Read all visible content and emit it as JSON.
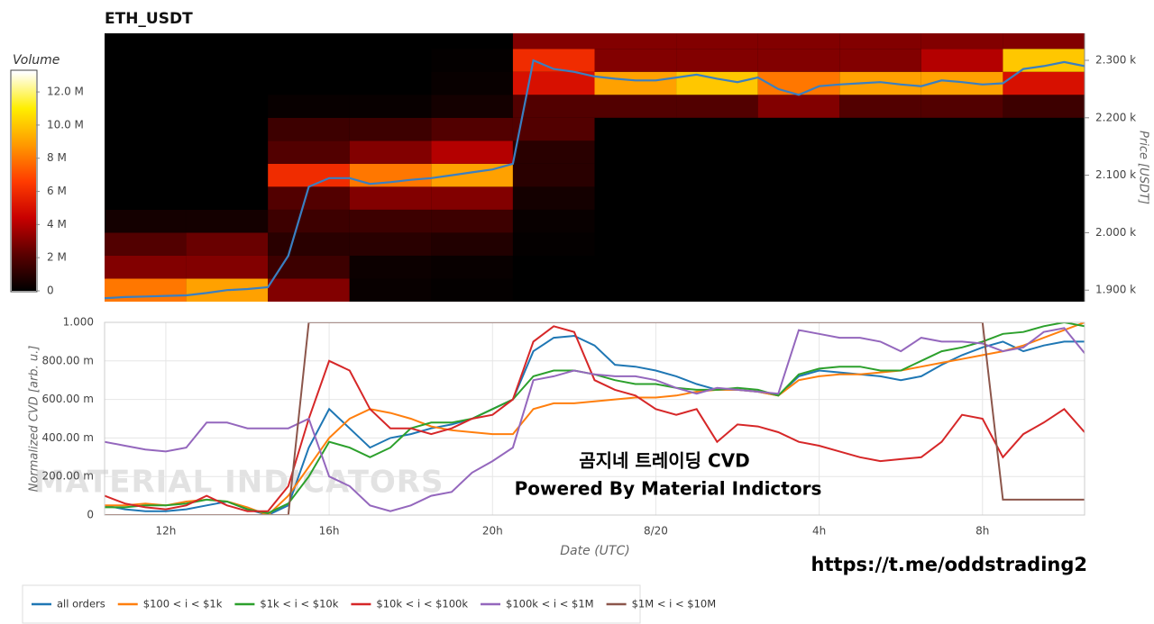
{
  "chart_data": [
    {
      "type": "heatmap",
      "title": "ETH_USDT",
      "x_edges": [
        10.5,
        12.5,
        14.5,
        16.5,
        18.5,
        20.5,
        22.5,
        24.5,
        26.5,
        28.5,
        30.5,
        32.5,
        34.5
      ],
      "y_edges": [
        1880,
        1920,
        1960,
        2000,
        2040,
        2080,
        2120,
        2160,
        2200,
        2240,
        2280,
        2320,
        2360
      ],
      "z": [
        [
          8,
          9,
          3,
          0.2,
          0.1,
          0,
          0,
          0,
          0,
          0,
          0,
          0
        ],
        [
          3,
          3,
          1.5,
          0.3,
          0.2,
          0,
          0,
          0,
          0,
          0,
          0,
          0
        ],
        [
          2,
          2.5,
          1,
          1,
          0.8,
          0.1,
          0,
          0,
          0,
          0,
          0,
          0
        ],
        [
          0.5,
          0.5,
          1.5,
          1.5,
          1.5,
          0.2,
          0,
          0,
          0,
          0,
          0,
          0
        ],
        [
          0,
          0,
          2,
          3,
          3,
          0.5,
          0,
          0,
          0,
          0,
          0,
          0
        ],
        [
          0,
          0,
          6,
          8,
          9,
          1,
          0,
          0,
          0,
          0,
          0,
          0
        ],
        [
          0,
          0,
          2,
          3,
          4,
          1,
          0,
          0,
          0,
          0,
          0,
          0
        ],
        [
          0,
          0,
          1.5,
          1.5,
          2,
          2,
          0,
          0,
          0,
          0,
          0,
          0
        ],
        [
          0,
          0,
          0.2,
          0.2,
          0.5,
          2,
          2,
          2,
          3,
          2,
          2,
          1.5
        ],
        [
          0,
          0,
          0,
          0,
          0.2,
          5,
          9,
          10,
          8,
          9,
          9,
          5
        ],
        [
          0,
          0,
          0,
          0,
          0.1,
          6,
          3,
          3,
          3,
          3,
          4,
          10
        ],
        [
          0,
          0,
          0,
          0,
          0,
          3,
          3,
          3,
          3,
          3,
          3,
          3
        ]
      ],
      "colorscale": [
        "#000000",
        "#5a0000",
        "#c80000",
        "#ff3c00",
        "#ff9900",
        "#ffee00",
        "#ffffff"
      ],
      "zlim": [
        0,
        13.2
      ],
      "colorbar_title": "Volume",
      "zticks": [
        0,
        {
          "value": 2,
          "label": "2 M"
        },
        {
          "value": 4,
          "label": "4 M"
        },
        {
          "value": 6,
          "label": "6 M"
        },
        {
          "value": 8,
          "label": "8 M"
        },
        {
          "value": 10,
          "label": "10.0 M"
        },
        {
          "value": 12,
          "label": "12.0 M"
        }
      ],
      "ylabel": "Price [USDT]",
      "ylim": [
        1880,
        2347
      ],
      "yticks": [
        {
          "value": 1900,
          "label": "1.900 k"
        },
        {
          "value": 2000,
          "label": "2.000 k"
        },
        {
          "value": 2100,
          "label": "2.100 k"
        },
        {
          "value": 2200,
          "label": "2.200 k"
        },
        {
          "value": 2300,
          "label": "2.300 k"
        }
      ],
      "xlim": [
        10.5,
        34.5
      ],
      "x": [
        10.5,
        11,
        11.5,
        12,
        12.5,
        13,
        13.5,
        14,
        14.5,
        15,
        15.5,
        16,
        16.5,
        17,
        17.5,
        18,
        18.5,
        19,
        19.5,
        20,
        20.5,
        21,
        21.5,
        22,
        22.5,
        23,
        23.5,
        24,
        24.5,
        25,
        25.5,
        26,
        26.5,
        27,
        27.5,
        28,
        28.5,
        29,
        29.5,
        30,
        30.5,
        31,
        31.5,
        32,
        32.5,
        33,
        33.5,
        34,
        34.5
      ],
      "line": {
        "color": "#3a7fc1",
        "values": [
          1886,
          1888,
          1889,
          1890,
          1891,
          1895,
          1900,
          1902,
          1905,
          1960,
          2080,
          2095,
          2095,
          2085,
          2088,
          2092,
          2095,
          2100,
          2105,
          2110,
          2120,
          2300,
          2285,
          2280,
          2272,
          2268,
          2265,
          2265,
          2270,
          2275,
          2268,
          2262,
          2270,
          2250,
          2240,
          2255,
          2258,
          2260,
          2262,
          2258,
          2255,
          2265,
          2262,
          2258,
          2260,
          2285,
          2290,
          2297,
          2290
        ]
      }
    },
    {
      "type": "line",
      "xlabel": "Date (UTC)",
      "ylabel": "Normalized CVD [arb. u.]",
      "xlim": [
        10.5,
        34.5
      ],
      "xticks": [
        {
          "value": 12,
          "label": "12h"
        },
        {
          "value": 16,
          "label": "16h"
        },
        {
          "value": 20,
          "label": "20h"
        },
        {
          "value": 24,
          "label": "8/20"
        },
        {
          "value": 28,
          "label": "4h"
        },
        {
          "value": 32,
          "label": "8h"
        }
      ],
      "ylim": [
        0,
        1
      ],
      "yticks": [
        0,
        {
          "value": 0.2,
          "label": "200.00 m"
        },
        {
          "value": 0.4,
          "label": "400.00 m"
        },
        {
          "value": 0.6,
          "label": "600.00 m"
        },
        {
          "value": 0.8,
          "label": "800.00 m"
        },
        {
          "value": 1,
          "label": "1.000"
        }
      ],
      "grid": true,
      "x": [
        10.5,
        11,
        11.5,
        12,
        12.5,
        13,
        13.5,
        14,
        14.5,
        15,
        15.5,
        16,
        16.5,
        17,
        17.5,
        18,
        18.5,
        19,
        19.5,
        20,
        20.5,
        21,
        21.5,
        22,
        22.5,
        23,
        23.5,
        24,
        24.5,
        25,
        25.5,
        26,
        26.5,
        27,
        27.5,
        28,
        28.5,
        29,
        29.5,
        30,
        30.5,
        31,
        31.5,
        32,
        32.5,
        33,
        33.5,
        34,
        34.5
      ],
      "series": [
        {
          "name": "all orders",
          "color": "#1f77b4",
          "values": [
            0.05,
            0.03,
            0.02,
            0.02,
            0.03,
            0.05,
            0.07,
            0.03,
            0,
            0.05,
            0.35,
            0.55,
            0.45,
            0.35,
            0.4,
            0.42,
            0.45,
            0.47,
            0.5,
            0.55,
            0.6,
            0.85,
            0.92,
            0.93,
            0.88,
            0.78,
            0.77,
            0.75,
            0.72,
            0.68,
            0.65,
            0.65,
            0.64,
            0.62,
            0.72,
            0.75,
            0.74,
            0.73,
            0.72,
            0.7,
            0.72,
            0.78,
            0.83,
            0.87,
            0.9,
            0.85,
            0.88,
            0.9,
            0.9
          ]
        },
        {
          "name": "$100 < i < $1k",
          "color": "#ff7f0e",
          "values": [
            0.05,
            0.05,
            0.06,
            0.05,
            0.07,
            0.08,
            0.07,
            0.04,
            0,
            0.1,
            0.25,
            0.4,
            0.5,
            0.55,
            0.53,
            0.5,
            0.46,
            0.44,
            0.43,
            0.42,
            0.42,
            0.55,
            0.58,
            0.58,
            0.59,
            0.6,
            0.61,
            0.61,
            0.62,
            0.64,
            0.65,
            0.65,
            0.64,
            0.62,
            0.7,
            0.72,
            0.73,
            0.73,
            0.74,
            0.75,
            0.77,
            0.79,
            0.81,
            0.83,
            0.85,
            0.88,
            0.92,
            0.96,
            1
          ]
        },
        {
          "name": "$1k < i < $10k",
          "color": "#2ca02c",
          "values": [
            0.04,
            0.04,
            0.05,
            0.05,
            0.06,
            0.08,
            0.07,
            0.03,
            0.01,
            0.06,
            0.2,
            0.38,
            0.35,
            0.3,
            0.35,
            0.45,
            0.48,
            0.48,
            0.5,
            0.55,
            0.6,
            0.72,
            0.75,
            0.75,
            0.73,
            0.7,
            0.68,
            0.68,
            0.66,
            0.65,
            0.65,
            0.66,
            0.65,
            0.62,
            0.73,
            0.76,
            0.77,
            0.77,
            0.75,
            0.75,
            0.8,
            0.85,
            0.87,
            0.9,
            0.94,
            0.95,
            0.98,
            1,
            0.98
          ]
        },
        {
          "name": "$10k < i < $100k",
          "color": "#d62728",
          "values": [
            0.1,
            0.06,
            0.04,
            0.03,
            0.05,
            0.1,
            0.05,
            0.02,
            0.02,
            0.15,
            0.5,
            0.8,
            0.75,
            0.55,
            0.45,
            0.45,
            0.42,
            0.45,
            0.5,
            0.52,
            0.6,
            0.9,
            0.98,
            0.95,
            0.7,
            0.65,
            0.62,
            0.55,
            0.52,
            0.55,
            0.38,
            0.47,
            0.46,
            0.43,
            0.38,
            0.36,
            0.33,
            0.3,
            0.28,
            0.29,
            0.3,
            0.38,
            0.52,
            0.5,
            0.3,
            0.42,
            0.48,
            0.55,
            0.43
          ]
        },
        {
          "name": "$100k < i < $1M",
          "color": "#9467bd",
          "values": [
            0.38,
            0.36,
            0.34,
            0.33,
            0.35,
            0.48,
            0.48,
            0.45,
            0.45,
            0.45,
            0.5,
            0.2,
            0.15,
            0.05,
            0.02,
            0.05,
            0.1,
            0.12,
            0.22,
            0.28,
            0.35,
            0.7,
            0.72,
            0.75,
            0.73,
            0.72,
            0.72,
            0.7,
            0.66,
            0.63,
            0.66,
            0.65,
            0.64,
            0.63,
            0.96,
            0.94,
            0.92,
            0.92,
            0.9,
            0.85,
            0.92,
            0.9,
            0.9,
            0.89,
            0.85,
            0.87,
            0.95,
            0.97,
            0.84
          ]
        },
        {
          "name": "$1M < i < $10M",
          "color": "#8c564b",
          "values": [
            0,
            0,
            0,
            0,
            0,
            0,
            0,
            0,
            0,
            0,
            1,
            1,
            1,
            1,
            1,
            1,
            1,
            1,
            1,
            1,
            1,
            1,
            1,
            1,
            1,
            1,
            1,
            1,
            1,
            1,
            1,
            1,
            1,
            1,
            1,
            1,
            1,
            1,
            1,
            1,
            1,
            1,
            1,
            1,
            0.08,
            0.08,
            0.08,
            0.08,
            0.08
          ]
        }
      ],
      "watermark": "MATERIAL INDICATORS",
      "annotations": [
        "곰지네 트레이딩 CVD",
        "Powered By Material Indictors"
      ],
      "link": "https://t.me/oddstrading2"
    }
  ]
}
